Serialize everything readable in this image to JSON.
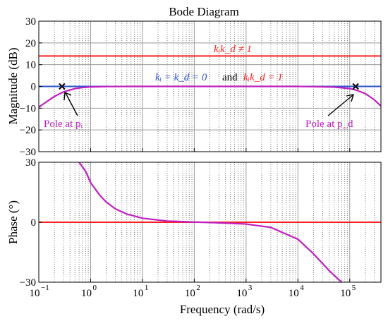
{
  "chart_data": {
    "type": "line",
    "title": "Bode Diagram",
    "xlabel": "Frequency  (rad/s)",
    "x_scale": "log",
    "xlim": [
      0.1,
      400000
    ],
    "x_tick_values": [
      0.1,
      1,
      10,
      100,
      1000,
      10000,
      100000
    ],
    "x_tick_labels": [
      {
        "base": "10",
        "exp": "−1"
      },
      {
        "base": "10",
        "exp": "0"
      },
      {
        "base": "10",
        "exp": "1"
      },
      {
        "base": "10",
        "exp": "2"
      },
      {
        "base": "10",
        "exp": "3"
      },
      {
        "base": "10",
        "exp": "4"
      },
      {
        "base": "10",
        "exp": "5"
      }
    ],
    "grid": true,
    "colors": {
      "red": "#ff2020",
      "blue": "#2b55d8",
      "magenta": "#c020c0",
      "axis": "#000000"
    },
    "panels": [
      {
        "id": "magnitude",
        "ylabel": "Magnitude (dB)",
        "ylim": [
          -30,
          30
        ],
        "y_ticks": [
          -30,
          -20,
          -10,
          0,
          10,
          20,
          30
        ],
        "y_tick_labels": [
          "−30",
          "−20",
          "−10",
          "0",
          "10",
          "20",
          "30"
        ],
        "series": [
          {
            "color": "red",
            "x": [
              0.1,
              400000
            ],
            "y": [
              14,
              14
            ]
          },
          {
            "color": "blue",
            "x": [
              0.1,
              400000
            ],
            "y": [
              0,
              0
            ]
          },
          {
            "color": "magenta",
            "x": [
              0.1,
              0.2,
              0.3,
              0.5,
              0.7,
              1,
              2,
              5,
              10,
              100,
              1000,
              10000,
              20000,
              50000,
              100000,
              130000,
              200000,
              300000,
              400000
            ],
            "y": [
              -9.5,
              -4.6,
              -2.5,
              -1.0,
              -0.5,
              -0.25,
              -0.06,
              -0.01,
              0,
              0,
              0,
              0,
              -0.1,
              -0.3,
              -1.0,
              -1.6,
              -3.3,
              -6.2,
              -9.0
            ]
          }
        ],
        "markers": [
          {
            "x": 0.28,
            "y": 0
          },
          {
            "x": 130000,
            "y": 0
          }
        ]
      },
      {
        "id": "phase",
        "ylabel": "Phase (°)",
        "ylim": [
          -30,
          30
        ],
        "y_ticks": [
          -30,
          0,
          30
        ],
        "y_tick_labels": [
          "−30",
          "0",
          "30"
        ],
        "series": [
          {
            "color": "red",
            "x": [
              0.1,
              400000
            ],
            "y": [
              0,
              0
            ]
          },
          {
            "color": "magenta",
            "x": [
              0.6,
              0.8,
              1,
              1.5,
              2,
              3,
              5,
              10,
              30,
              100,
              300,
              1000,
              3000,
              10000,
              20000,
              40000,
              60000,
              70000
            ],
            "y": [
              30,
              25.5,
              19.8,
              13.5,
              10.1,
              6.7,
              4.1,
              2.0,
              0.6,
              0.1,
              -0.3,
              -0.9,
              -2.6,
              -8.5,
              -15.8,
              -24.2,
              -28.5,
              -29.9
            ]
          }
        ]
      }
    ],
    "annotations": {
      "red_label": "kᵢk_d ≠ 1",
      "blue_label": "kᵢ = k_d = 0",
      "and_text": "and",
      "red_label2": "kᵢk_d = 1",
      "pole_left": "Pole at pᵢ",
      "pole_right": "Pole at p_d"
    }
  }
}
